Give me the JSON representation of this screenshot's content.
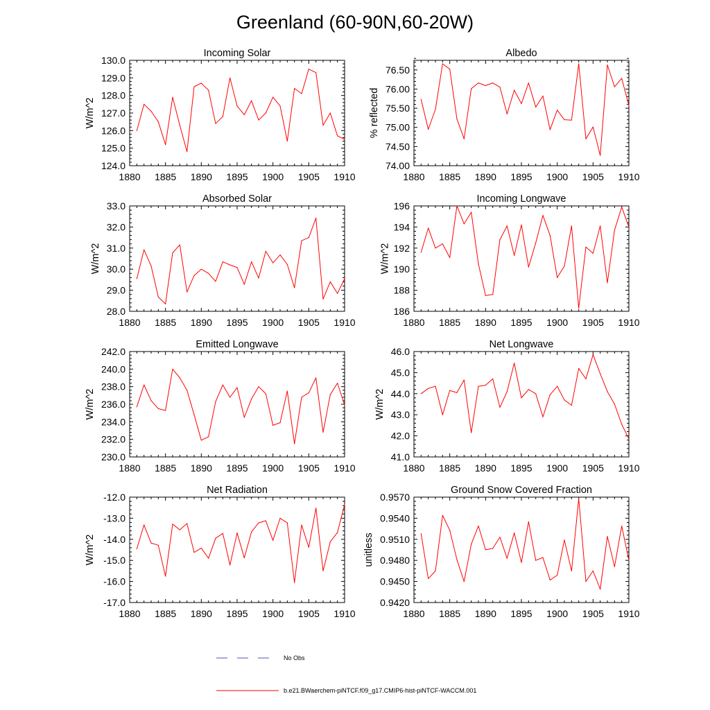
{
  "figure_title": "Greenland (60-90N,60-20W)",
  "legend": {
    "obs_label": "No Obs",
    "obs_color": "#4a57a8",
    "model_label": "b.e21.BWaerchem-piNTCF.f09_g17.CMIP6-hist-piNTCF-WACCM.001",
    "model_color": "#ff0000"
  },
  "chart_data": [
    {
      "type": "line",
      "title": "Incoming Solar",
      "ylabel": "W/m^2",
      "xlim": [
        1880,
        1910
      ],
      "ylim": [
        124.0,
        130.0
      ],
      "xticks": [
        1880,
        1885,
        1890,
        1895,
        1900,
        1905,
        1910
      ],
      "yticks": [
        "124.0",
        "125.0",
        "126.0",
        "127.0",
        "128.0",
        "129.0",
        "130.0"
      ],
      "x": [
        1881,
        1882,
        1883,
        1884,
        1885,
        1886,
        1887,
        1888,
        1889,
        1890,
        1891,
        1892,
        1893,
        1894,
        1895,
        1896,
        1897,
        1898,
        1899,
        1900,
        1901,
        1902,
        1903,
        1904,
        1905,
        1906,
        1907,
        1908,
        1909,
        1910
      ],
      "series": [
        {
          "values": [
            126.0,
            127.5,
            127.1,
            126.5,
            125.2,
            127.9,
            126.3,
            124.8,
            128.5,
            128.7,
            128.3,
            126.4,
            126.8,
            129.0,
            127.4,
            126.9,
            127.7,
            126.6,
            127.0,
            127.9,
            127.4,
            125.4,
            128.4,
            128.1,
            129.5,
            129.3,
            126.3,
            127.0,
            125.7,
            125.5
          ]
        }
      ]
    },
    {
      "type": "line",
      "title": "Albedo",
      "ylabel": "% reflected",
      "xlim": [
        1880,
        1910
      ],
      "ylim": [
        74.0,
        76.75
      ],
      "xticks": [
        1880,
        1885,
        1890,
        1895,
        1900,
        1905,
        1910
      ],
      "yticks": [
        "74.00",
        "74.50",
        "75.00",
        "75.50",
        "76.00",
        "76.50"
      ],
      "x": [
        1881,
        1882,
        1883,
        1884,
        1885,
        1886,
        1887,
        1888,
        1889,
        1890,
        1891,
        1892,
        1893,
        1894,
        1895,
        1896,
        1897,
        1898,
        1899,
        1900,
        1901,
        1902,
        1903,
        1904,
        1905,
        1906,
        1907,
        1908,
        1909,
        1910
      ],
      "series": [
        {
          "values": [
            75.73,
            74.95,
            75.47,
            76.66,
            76.52,
            75.22,
            74.7,
            76.01,
            76.16,
            76.09,
            76.16,
            76.05,
            75.35,
            75.97,
            75.62,
            76.16,
            75.53,
            75.82,
            74.94,
            75.45,
            75.2,
            75.19,
            76.66,
            74.7,
            75.01,
            74.27,
            76.63,
            76.06,
            76.28,
            75.57
          ]
        }
      ]
    },
    {
      "type": "line",
      "title": "Absorbed Solar",
      "ylabel": "W/m^2",
      "xlim": [
        1880,
        1910
      ],
      "ylim": [
        28.0,
        33.0
      ],
      "xticks": [
        1880,
        1885,
        1890,
        1895,
        1900,
        1905,
        1910
      ],
      "yticks": [
        "28.0",
        "29.0",
        "30.0",
        "31.0",
        "32.0",
        "33.0"
      ],
      "x": [
        1881,
        1882,
        1883,
        1884,
        1885,
        1886,
        1887,
        1888,
        1889,
        1890,
        1891,
        1892,
        1893,
        1894,
        1895,
        1896,
        1897,
        1898,
        1899,
        1900,
        1901,
        1902,
        1903,
        1904,
        1905,
        1906,
        1907,
        1908,
        1909,
        1910
      ],
      "series": [
        {
          "values": [
            29.55,
            30.92,
            30.15,
            28.68,
            28.35,
            30.78,
            31.15,
            28.92,
            29.7,
            30.0,
            29.8,
            29.42,
            30.35,
            30.2,
            30.08,
            29.28,
            30.35,
            29.58,
            30.85,
            30.3,
            30.68,
            30.22,
            29.12,
            31.35,
            31.5,
            32.42,
            28.58,
            29.4,
            28.85,
            29.55
          ]
        }
      ]
    },
    {
      "type": "line",
      "title": "Incoming Longwave",
      "ylabel": "W/m^2",
      "xlim": [
        1880,
        1910
      ],
      "ylim": [
        186,
        196
      ],
      "xticks": [
        1880,
        1885,
        1890,
        1895,
        1900,
        1905,
        1910
      ],
      "yticks": [
        "186",
        "188",
        "190",
        "192",
        "194",
        "196"
      ],
      "x": [
        1881,
        1882,
        1883,
        1884,
        1885,
        1886,
        1887,
        1888,
        1889,
        1890,
        1891,
        1892,
        1893,
        1894,
        1895,
        1896,
        1897,
        1898,
        1899,
        1900,
        1901,
        1902,
        1903,
        1904,
        1905,
        1906,
        1907,
        1908,
        1909,
        1910
      ],
      "series": [
        {
          "values": [
            191.6,
            193.9,
            192.0,
            192.4,
            191.1,
            196.0,
            194.3,
            195.4,
            190.5,
            187.5,
            187.6,
            192.8,
            194.1,
            191.3,
            194.2,
            190.2,
            192.5,
            195.1,
            193.2,
            189.2,
            190.3,
            194.1,
            186.3,
            192.1,
            191.5,
            194.1,
            188.7,
            193.7,
            195.9,
            194.0
          ]
        }
      ]
    },
    {
      "type": "line",
      "title": "Emitted Longwave",
      "ylabel": "W/m^2",
      "xlim": [
        1880,
        1910
      ],
      "ylim": [
        230.0,
        242.0
      ],
      "xticks": [
        1880,
        1885,
        1890,
        1895,
        1900,
        1905,
        1910
      ],
      "yticks": [
        "230.0",
        "232.0",
        "234.0",
        "236.0",
        "238.0",
        "240.0",
        "242.0"
      ],
      "x": [
        1881,
        1882,
        1883,
        1884,
        1885,
        1886,
        1887,
        1888,
        1889,
        1890,
        1891,
        1892,
        1893,
        1894,
        1895,
        1896,
        1897,
        1898,
        1899,
        1900,
        1901,
        1902,
        1903,
        1904,
        1905,
        1906,
        1907,
        1908,
        1909,
        1910
      ],
      "series": [
        {
          "values": [
            235.7,
            238.2,
            236.4,
            235.5,
            235.3,
            240.0,
            239.0,
            237.6,
            234.8,
            231.9,
            232.3,
            236.3,
            238.2,
            236.8,
            237.9,
            234.5,
            236.6,
            238.0,
            237.2,
            233.6,
            233.9,
            237.5,
            231.5,
            236.8,
            237.3,
            239.0,
            232.8,
            237.1,
            238.4,
            235.9
          ]
        }
      ]
    },
    {
      "type": "line",
      "title": "Net Longwave",
      "ylabel": "W/m^2",
      "xlim": [
        1880,
        1910
      ],
      "ylim": [
        41.0,
        46.0
      ],
      "xticks": [
        1880,
        1885,
        1890,
        1895,
        1900,
        1905,
        1910
      ],
      "yticks": [
        "41.0",
        "42.0",
        "43.0",
        "44.0",
        "45.0",
        "46.0"
      ],
      "x": [
        1881,
        1882,
        1883,
        1884,
        1885,
        1886,
        1887,
        1888,
        1889,
        1890,
        1891,
        1892,
        1893,
        1894,
        1895,
        1896,
        1897,
        1898,
        1899,
        1900,
        1901,
        1902,
        1903,
        1904,
        1905,
        1906,
        1907,
        1908,
        1909,
        1910
      ],
      "series": [
        {
          "values": [
            44.0,
            44.25,
            44.35,
            43.0,
            44.15,
            44.05,
            44.65,
            42.15,
            44.35,
            44.4,
            44.7,
            43.35,
            44.1,
            45.45,
            43.8,
            44.2,
            44.0,
            42.9,
            43.95,
            44.35,
            43.7,
            43.45,
            45.2,
            44.7,
            45.85,
            44.95,
            44.1,
            43.5,
            42.55,
            41.85
          ]
        }
      ]
    },
    {
      "type": "line",
      "title": "Net Radiation",
      "ylabel": "W/m^2",
      "xlim": [
        1880,
        1910
      ],
      "ylim": [
        -17.0,
        -12.0
      ],
      "xticks": [
        1880,
        1885,
        1890,
        1895,
        1900,
        1905,
        1910
      ],
      "yticks": [
        "-17.0",
        "-16.0",
        "-15.0",
        "-14.0",
        "-13.0",
        "-12.0"
      ],
      "x": [
        1881,
        1882,
        1883,
        1884,
        1885,
        1886,
        1887,
        1888,
        1889,
        1890,
        1891,
        1892,
        1893,
        1894,
        1895,
        1896,
        1897,
        1898,
        1899,
        1900,
        1901,
        1902,
        1903,
        1904,
        1905,
        1906,
        1907,
        1908,
        1909,
        1910
      ],
      "series": [
        {
          "values": [
            -14.45,
            -13.32,
            -14.18,
            -14.28,
            -15.75,
            -13.28,
            -13.55,
            -13.25,
            -14.62,
            -14.42,
            -14.9,
            -13.95,
            -13.72,
            -15.22,
            -13.7,
            -14.88,
            -13.65,
            -13.22,
            -13.12,
            -14.05,
            -13.0,
            -13.22,
            -16.05,
            -13.32,
            -14.38,
            -12.52,
            -15.5,
            -14.12,
            -13.68,
            -12.35
          ]
        }
      ]
    },
    {
      "type": "line",
      "title": "Ground Snow Covered Fraction",
      "ylabel": "unitless",
      "xlim": [
        1880,
        1910
      ],
      "ylim": [
        0.942,
        0.957
      ],
      "xticks": [
        1880,
        1885,
        1890,
        1895,
        1900,
        1905,
        1910
      ],
      "yticks": [
        "0.9420",
        "0.9450",
        "0.9480",
        "0.9510",
        "0.9540",
        "0.9570"
      ],
      "x": [
        1881,
        1882,
        1883,
        1884,
        1885,
        1886,
        1887,
        1888,
        1889,
        1890,
        1891,
        1892,
        1893,
        1894,
        1895,
        1896,
        1897,
        1898,
        1899,
        1900,
        1901,
        1902,
        1903,
        1904,
        1905,
        1906,
        1907,
        1908,
        1909,
        1910
      ],
      "series": [
        {
          "values": [
            0.9518,
            0.9454,
            0.9465,
            0.9544,
            0.9523,
            0.9481,
            0.945,
            0.9503,
            0.9529,
            0.9495,
            0.9497,
            0.9513,
            0.9483,
            0.9519,
            0.9477,
            0.9535,
            0.948,
            0.9484,
            0.9452,
            0.9459,
            0.9509,
            0.9465,
            0.9568,
            0.945,
            0.9465,
            0.9439,
            0.9514,
            0.9471,
            0.9529,
            0.948
          ]
        }
      ]
    }
  ]
}
